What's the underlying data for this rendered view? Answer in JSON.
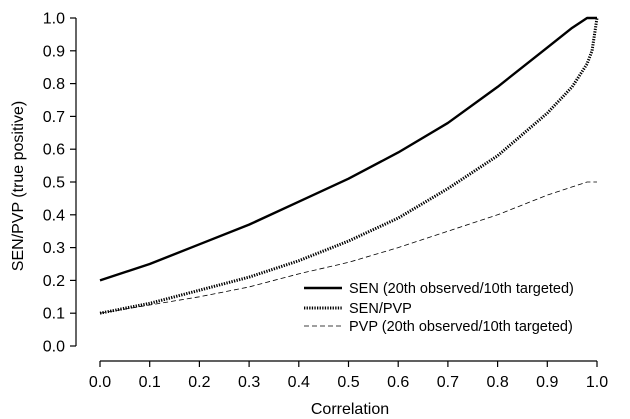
{
  "chart_data": {
    "type": "line",
    "title": "",
    "xlabel": "Correlation",
    "ylabel": "SEN/PVP (true positive)",
    "xlim": [
      0.0,
      1.0
    ],
    "ylim": [
      0.0,
      1.0
    ],
    "xticks": [
      "0.0",
      "0.1",
      "0.2",
      "0.3",
      "0.4",
      "0.5",
      "0.6",
      "0.7",
      "0.8",
      "0.9",
      "1.0"
    ],
    "yticks": [
      "0.0",
      "0.1",
      "0.2",
      "0.3",
      "0.4",
      "0.5",
      "0.6",
      "0.7",
      "0.8",
      "0.9",
      "1.0"
    ],
    "grid": false,
    "legend_position": "bottom-right",
    "series": [
      {
        "name": "SEN (20th observed/10th targeted)",
        "style": "solid-thick",
        "x": [
          0.0,
          0.1,
          0.2,
          0.3,
          0.4,
          0.5,
          0.6,
          0.7,
          0.8,
          0.9,
          0.95,
          0.98,
          1.0
        ],
        "y": [
          0.2,
          0.25,
          0.31,
          0.37,
          0.44,
          0.51,
          0.59,
          0.68,
          0.79,
          0.91,
          0.97,
          1.0,
          1.0
        ]
      },
      {
        "name": "SEN/PVP",
        "style": "dotted-thick",
        "x": [
          0.0,
          0.1,
          0.2,
          0.3,
          0.4,
          0.5,
          0.6,
          0.7,
          0.8,
          0.9,
          0.95,
          0.98,
          0.99,
          1.0
        ],
        "y": [
          0.1,
          0.13,
          0.17,
          0.21,
          0.26,
          0.32,
          0.39,
          0.48,
          0.58,
          0.71,
          0.79,
          0.86,
          0.9,
          1.0
        ]
      },
      {
        "name": "PVP (20th observed/10th targeted)",
        "style": "dashed-thin",
        "x": [
          0.0,
          0.1,
          0.2,
          0.3,
          0.4,
          0.5,
          0.6,
          0.7,
          0.8,
          0.9,
          0.95,
          0.98,
          1.0
        ],
        "y": [
          0.1,
          0.125,
          0.15,
          0.18,
          0.22,
          0.255,
          0.3,
          0.35,
          0.4,
          0.46,
          0.485,
          0.5,
          0.5
        ]
      }
    ]
  }
}
